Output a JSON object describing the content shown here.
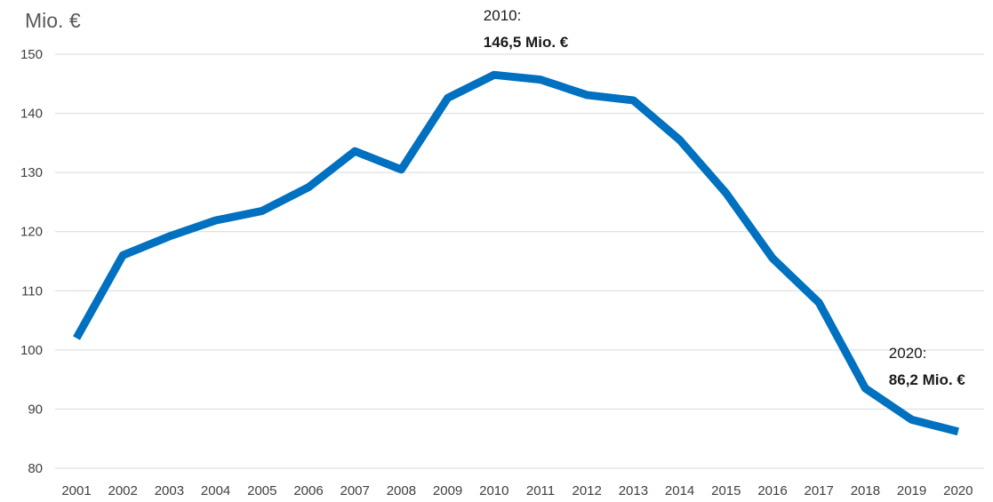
{
  "chart_data": {
    "type": "line",
    "ylabel": "Mio. €",
    "xlabel": "",
    "ylim": [
      80,
      150
    ],
    "yticks": [
      80,
      90,
      100,
      110,
      120,
      130,
      140,
      150
    ],
    "grid": "horizontal",
    "x": [
      "2001",
      "2002",
      "2003",
      "2004",
      "2005",
      "2006",
      "2007",
      "2008",
      "2009",
      "2010",
      "2011",
      "2012",
      "2013",
      "2014",
      "2015",
      "2016",
      "2017",
      "2018",
      "2019",
      "2020"
    ],
    "series": [
      {
        "color": "#0070C0",
        "values": [
          102.0,
          116.0,
          119.2,
          121.9,
          123.5,
          127.5,
          133.6,
          130.5,
          142.6,
          146.5,
          145.7,
          143.1,
          142.2,
          135.5,
          126.5,
          115.5,
          108.0,
          93.5,
          88.2,
          86.2
        ]
      }
    ],
    "annotations": [
      {
        "x": "2010",
        "label": "2010:",
        "value": "146,5 Mio. €"
      },
      {
        "x": "2020",
        "label": "2020:",
        "value": "86,2 Mio. €"
      }
    ]
  }
}
